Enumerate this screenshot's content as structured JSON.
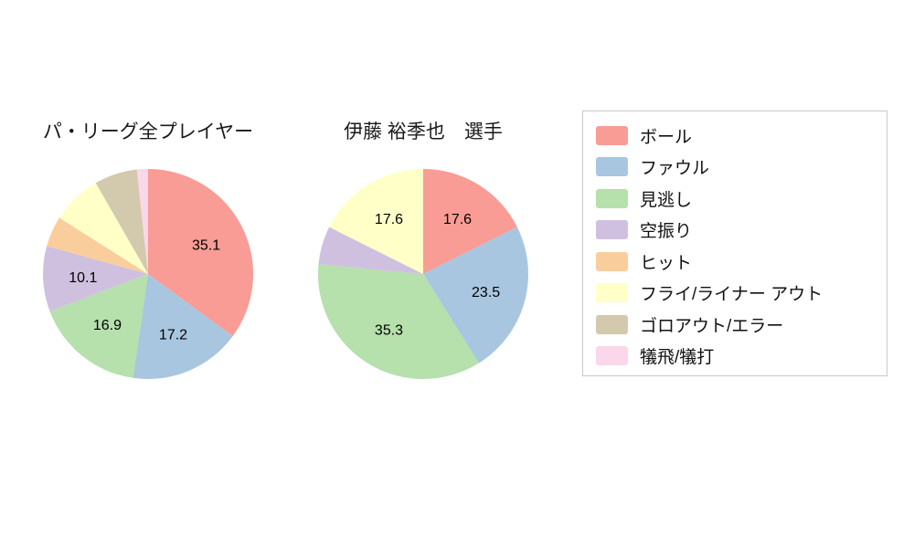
{
  "figure": {
    "background": "#ffffff",
    "text_color": "#111111"
  },
  "chart_settings": {
    "label_min_value": 10,
    "label_color": "#000000",
    "start_angle": "top",
    "direction": "clockwise",
    "value_decimals": 1
  },
  "chart_data": [
    {
      "type": "pie",
      "title": "パ・リーグ全プレイヤー",
      "categories": [
        "ボール",
        "ファウル",
        "見逃し",
        "空振り",
        "ヒット",
        "フライ/ライナー アウト",
        "ゴロアウト/エラー",
        "犠飛/犠打"
      ],
      "values": [
        35.1,
        17.2,
        16.9,
        10.1,
        4.7,
        7.7,
        6.6,
        1.7
      ],
      "shown_labels": [
        "35.1",
        "17.2",
        "16.9",
        "10.1"
      ],
      "legend_position": "right"
    },
    {
      "type": "pie",
      "title": "伊藤 裕季也　選手",
      "categories": [
        "ボール",
        "ファウル",
        "見逃し",
        "空振り",
        "ヒット",
        "フライ/ライナー アウト",
        "ゴロアウト/エラー",
        "犠飛/犠打"
      ],
      "values": [
        17.6,
        23.5,
        35.3,
        5.9,
        0,
        17.6,
        0,
        0
      ],
      "shown_labels": [
        "17.6",
        "23.5",
        "35.3",
        "17.6"
      ],
      "legend_position": "right"
    }
  ],
  "legend": {
    "items": [
      {
        "label": "ボール",
        "color": "#F89C95"
      },
      {
        "label": "ファウル",
        "color": "#A9C6E0"
      },
      {
        "label": "見逃し",
        "color": "#B6E0AC"
      },
      {
        "label": "空振り",
        "color": "#D0C0E0"
      },
      {
        "label": "ヒット",
        "color": "#FACE9C"
      },
      {
        "label": "フライ/ライナー アウト",
        "color": "#FFFFC8"
      },
      {
        "label": "ゴロアウト/エラー",
        "color": "#D3C9AD"
      },
      {
        "label": "犠飛/犠打",
        "color": "#FAD7EA"
      }
    ]
  }
}
